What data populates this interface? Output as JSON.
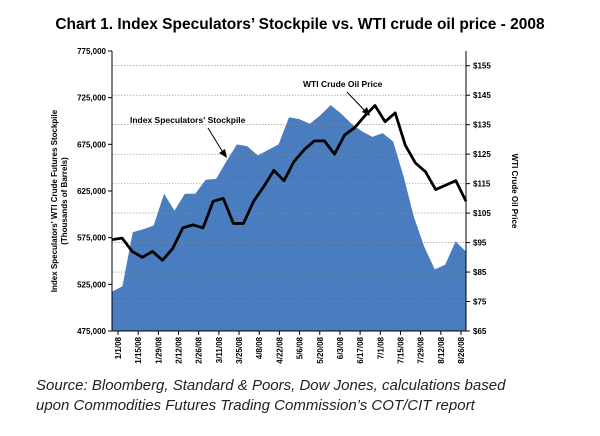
{
  "chart_data": {
    "type": "area",
    "title": "Chart 1. Index Speculators’ Stockpile vs. WTI crude oil price - 2008",
    "y_left_label_line1": "Index Speculators' WTI Crude Futures Stockpile",
    "y_left_label_line2": "(Thousands of Barrels)",
    "y_right_label": "WTI Crude Oil Price",
    "y_left_range": [
      475000,
      775000
    ],
    "y_right_range": [
      65,
      160
    ],
    "y_left_ticks": [
      "775,000",
      "725,000",
      "675,000",
      "625,000",
      "575,000",
      "525,000",
      "475,000"
    ],
    "y_right_ticks": [
      "$155",
      "$145",
      "$135",
      "$125",
      "$115",
      "$105",
      "$95",
      "$85",
      "$75",
      "$65"
    ],
    "x_tick_labels": [
      "1/1/08",
      "1/15/08",
      "1/29/08",
      "2/12/08",
      "2/26/08",
      "3/11/08",
      "3/25/08",
      "4/8/08",
      "4/22/08",
      "5/6/08",
      "5/20/08",
      "6/3/08",
      "6/17/08",
      "7/1/08",
      "7/15/08",
      "7/29/08",
      "8/12/08",
      "8/26/08"
    ],
    "series": [
      {
        "name": "Index Speculators' Stockpile",
        "kind": "area",
        "axis": "left",
        "color": "#4a7cc0",
        "values": [
          517000,
          523000,
          581000,
          584000,
          588000,
          622000,
          604000,
          622000,
          622000,
          637000,
          638000,
          657000,
          675000,
          673000,
          663000,
          669000,
          675000,
          704000,
          702000,
          697000,
          706000,
          717000,
          708000,
          697000,
          689000,
          683000,
          687000,
          678000,
          641000,
          597000,
          565000,
          541000,
          546000,
          571000,
          560000
        ]
      },
      {
        "name": "WTI Crude Oil Price",
        "kind": "line",
        "axis": "right",
        "color": "#000000",
        "values": [
          96,
          96.5,
          92,
          90,
          92,
          89,
          93,
          100,
          101,
          100,
          109,
          110,
          101.5,
          101.5,
          109,
          114,
          119.5,
          116,
          122.5,
          126.5,
          129.5,
          129.5,
          125,
          131.5,
          134,
          138,
          141.5,
          136,
          139,
          128,
          122,
          119,
          113,
          114.5,
          116,
          109
        ]
      }
    ],
    "annotations": [
      {
        "text": "Index Speculators' Stockpile",
        "series": "Index Speculators' Stockpile"
      },
      {
        "text": "WTI Crude Oil Price",
        "series": "WTI Crude Oil Price"
      }
    ]
  },
  "source_line1": "Source: Bloomberg, Standard & Poors, Dow Jones, calculations based",
  "source_line2": "upon Commodities Futures Trading Commission’s COT/CIT report"
}
